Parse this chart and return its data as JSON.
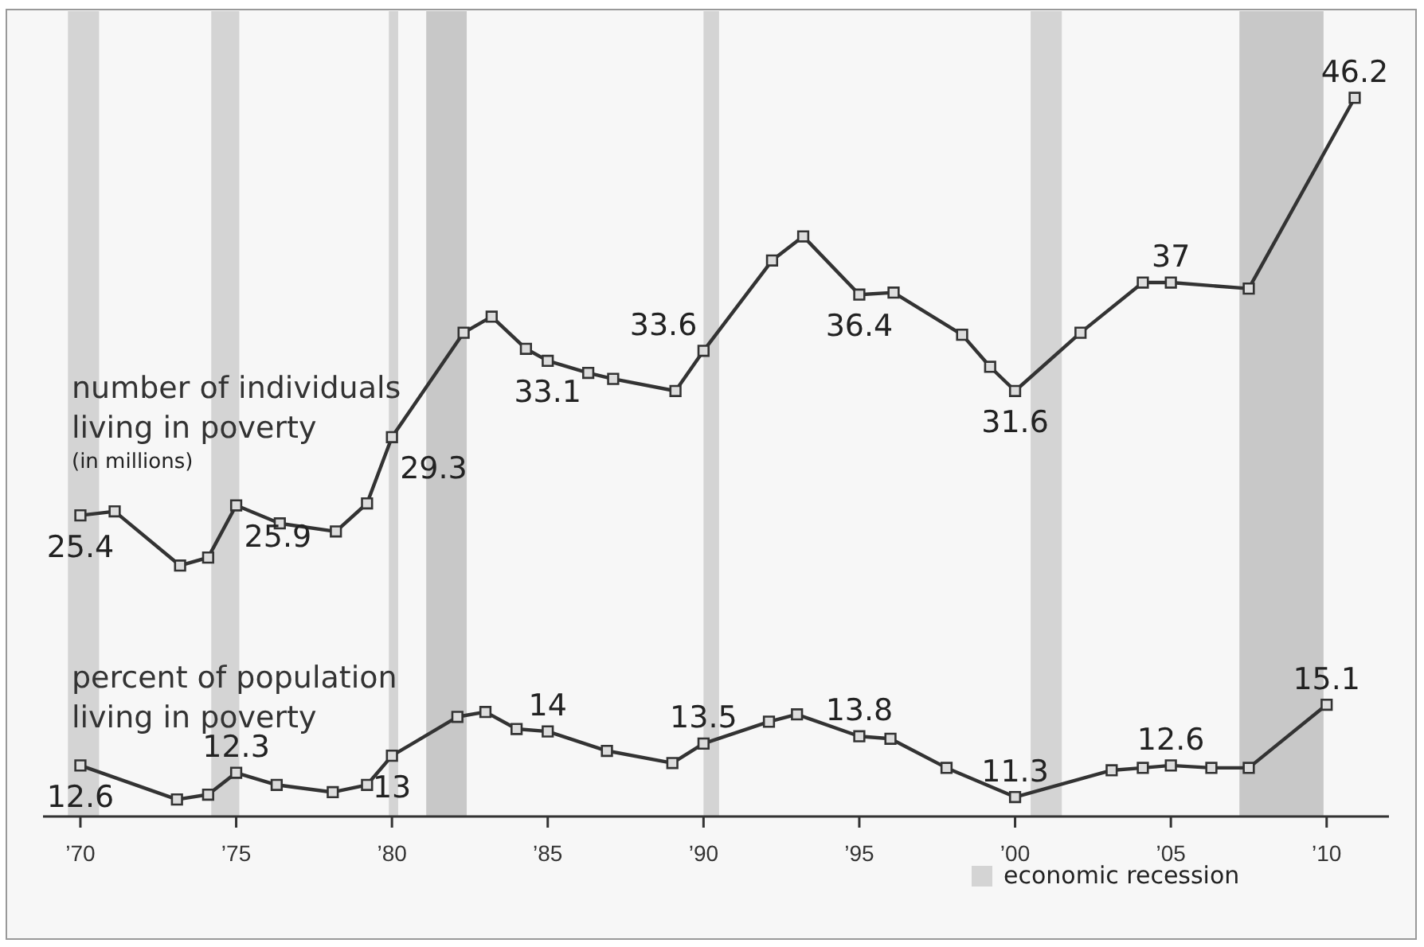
{
  "chart_data": {
    "type": "line",
    "marker": "square",
    "line_style": "solid",
    "grid": false,
    "legend": "bottom",
    "tick_labels": "x",
    "xlim": [
      1968.8,
      2012
    ],
    "xticks": [
      {
        "value": 1970,
        "label": "’70"
      },
      {
        "value": 1975,
        "label": "’75"
      },
      {
        "value": 1980,
        "label": "’80"
      },
      {
        "value": 1985,
        "label": "’85"
      },
      {
        "value": 1990,
        "label": "’90"
      },
      {
        "value": 1995,
        "label": "’95"
      },
      {
        "value": 2000,
        "label": "’00"
      },
      {
        "value": 2005,
        "label": "’05"
      },
      {
        "value": 2010,
        "label": "’10"
      }
    ],
    "ylim": [
      10.4,
      50.6
    ],
    "y2lim": [
      10.5,
      43.7
    ],
    "series": [
      {
        "name": "number of individuals living in poverty",
        "color": "#333333",
        "axis": "y",
        "x": [
          1970,
          1971.1,
          1973.2,
          1974.1,
          1975,
          1976.4,
          1978.2,
          1979.2,
          1980,
          1982.3,
          1983.2,
          1984.3,
          1985,
          1986.3,
          1987.1,
          1989.1,
          1990,
          1992.2,
          1993.2,
          1995,
          1996.1,
          1998.3,
          1999.2,
          2000,
          2002.1,
          2004.1,
          2005,
          2007.5,
          2010.9
        ],
        "values": [
          25.4,
          25.6,
          22.9,
          23.3,
          25.9,
          25.0,
          24.6,
          26.0,
          29.3,
          34.5,
          35.3,
          33.7,
          33.1,
          32.5,
          32.2,
          31.6,
          33.6,
          38.1,
          39.3,
          36.4,
          36.5,
          34.4,
          32.8,
          31.6,
          34.5,
          37.0,
          37,
          36.7,
          46.2
        ],
        "value_labels": [
          "25.4",
          null,
          null,
          null,
          "25.9",
          null,
          null,
          null,
          "29.3",
          null,
          null,
          null,
          "33.1",
          null,
          null,
          null,
          "33.6",
          null,
          null,
          "36.4",
          null,
          null,
          null,
          "31.6",
          null,
          null,
          "37",
          null,
          "46.2"
        ]
      },
      {
        "name": "percent of population living in poverty",
        "color": "#333333",
        "axis": "y2",
        "x": [
          1970,
          1973.1,
          1974.1,
          1975,
          1976.3,
          1978.1,
          1979.2,
          1980,
          1982.1,
          1983,
          1984,
          1985,
          1986.9,
          1989,
          1990,
          1992.1,
          1993,
          1995,
          1996,
          1997.8,
          2000,
          2003.1,
          2004.1,
          2005,
          2006.3,
          2007.5,
          2010
        ],
        "values": [
          12.6,
          11.2,
          11.4,
          12.3,
          11.8,
          11.5,
          11.8,
          13,
          14.6,
          14.8,
          14.1,
          14,
          13.2,
          12.7,
          13.5,
          14.4,
          14.7,
          13.8,
          13.7,
          12.5,
          11.3,
          12.4,
          12.5,
          12.6,
          12.5,
          12.5,
          15.1
        ],
        "value_labels": [
          "12.6",
          null,
          null,
          "12.3",
          null,
          null,
          null,
          "13",
          null,
          null,
          null,
          "14",
          null,
          null,
          "13.5",
          null,
          null,
          "13.8",
          null,
          null,
          "11.3",
          null,
          null,
          "12.6",
          null,
          null,
          "15.1"
        ]
      }
    ],
    "bands": [
      {
        "axis": "x",
        "from": 1969.6,
        "to": 1970.6,
        "color": "#d4d4d4",
        "label": "economic recession"
      },
      {
        "axis": "x",
        "from": 1974.2,
        "to": 1975.1,
        "color": "#d4d4d4"
      },
      {
        "axis": "x",
        "from": 1979.9,
        "to": 1980.2,
        "color": "#d4d4d4"
      },
      {
        "axis": "x",
        "from": 1981.1,
        "to": 1982.4,
        "color": "#c8c8c8"
      },
      {
        "axis": "x",
        "from": 1990.0,
        "to": 1990.5,
        "color": "#d4d4d4"
      },
      {
        "axis": "x",
        "from": 2000.5,
        "to": 2001.5,
        "color": "#d4d4d4"
      },
      {
        "axis": "x",
        "from": 2007.2,
        "to": 2009.9,
        "color": "#c8c8c8"
      }
    ],
    "annotations": [
      "(in millions)"
    ]
  }
}
